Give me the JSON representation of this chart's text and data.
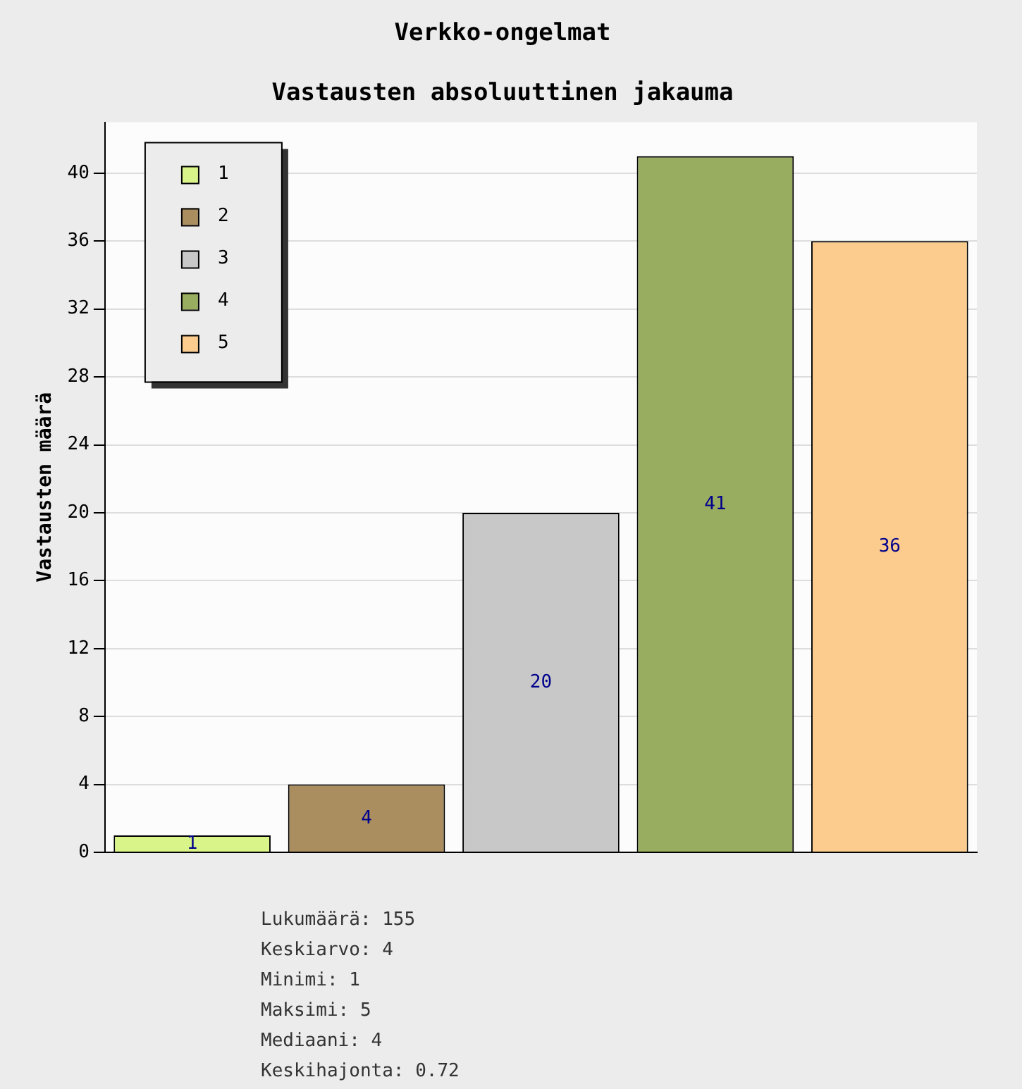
{
  "chart_data": {
    "type": "bar",
    "title": "Verkko-ongelmat",
    "subtitle": "Vastausten absoluuttinen jakauma",
    "ylabel": "Vastausten määrä",
    "categories": [
      null,
      null,
      null,
      null,
      null
    ],
    "series": [
      {
        "name": "1",
        "color": "#d9f58a",
        "values": [
          1,
          null,
          null,
          null,
          null
        ]
      },
      {
        "name": "2",
        "color": "#ab8e60",
        "values": [
          null,
          4,
          null,
          null,
          null
        ]
      },
      {
        "name": "3",
        "color": "#c8c8c8",
        "values": [
          null,
          null,
          20,
          null,
          null
        ]
      },
      {
        "name": "4",
        "color": "#99ad60",
        "values": [
          null,
          null,
          null,
          41,
          null
        ]
      },
      {
        "name": "5",
        "color": "#fbcc8e",
        "values": [
          null,
          null,
          null,
          null,
          36
        ]
      }
    ],
    "ylim": [
      0,
      43
    ],
    "yticks": [
      0,
      4,
      8,
      12,
      16,
      20,
      24,
      28,
      32,
      36,
      40
    ],
    "grid": "y",
    "legend": "top left",
    "data_labels": true,
    "annotations": [
      "Lukumäärä: 155",
      "Keskiarvo: 4",
      "Minimi: 1",
      "Maksimi: 5",
      "Mediaani: 4",
      "Keskihajonta: 0.72"
    ]
  }
}
